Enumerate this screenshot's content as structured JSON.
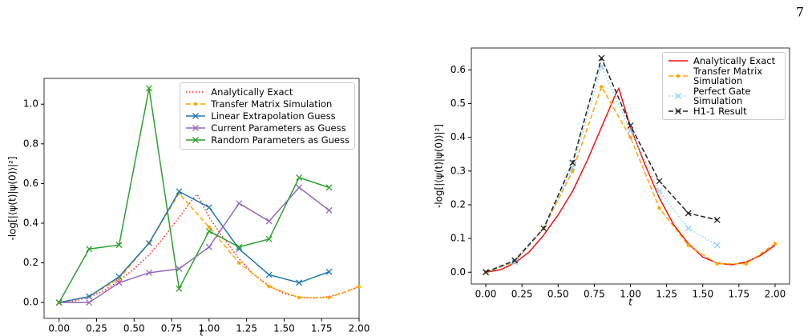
{
  "page_number": "7",
  "chart_data": [
    {
      "type": "line",
      "y_label": "-log[|⟨ψ(t)|ψ(0)⟩|²]",
      "x_label": "t",
      "xlim": [
        -0.1,
        2.0
      ],
      "ylim": [
        -0.08,
        1.13
      ],
      "xticks": [
        {
          "value": 0,
          "label": "0.00"
        },
        0.25,
        {
          "value": 0.5,
          "label": "0.50"
        },
        0.75,
        {
          "value": 1,
          "label": "1.00"
        },
        1.25,
        {
          "value": 1.5,
          "label": "1.50"
        },
        1.75,
        {
          "value": 2,
          "label": "2.00"
        }
      ],
      "yticks": [
        {
          "value": 0,
          "label": "0.0"
        },
        0.2,
        0.4,
        0.6,
        0.8,
        {
          "value": 1,
          "label": "1.0"
        }
      ],
      "legend": "upper right",
      "series": [
        {
          "name": "Analytically Exact",
          "color": "#ff2020",
          "linestyle": "dotted",
          "marker": "none",
          "x": [
            0,
            0.1,
            0.2,
            0.3,
            0.4,
            0.5,
            0.6,
            0.7,
            0.8,
            0.9,
            0.92,
            1.0,
            1.1,
            1.2,
            1.3,
            1.4,
            1.5,
            1.6,
            1.7,
            1.8,
            1.9,
            2.0
          ],
          "values": [
            0,
            0.007,
            0.027,
            0.06,
            0.11,
            0.17,
            0.24,
            0.33,
            0.43,
            0.53,
            0.545,
            0.43,
            0.32,
            0.22,
            0.14,
            0.085,
            0.045,
            0.027,
            0.022,
            0.03,
            0.05,
            0.08
          ]
        },
        {
          "name": "Transfer Matrix Simulation",
          "color": "#ffa500",
          "linestyle": "dashed",
          "marker": "dot",
          "x": [
            0,
            0.2,
            0.4,
            0.6,
            0.8,
            1.0,
            1.2,
            1.4,
            1.6,
            1.8,
            2.0
          ],
          "values": [
            0,
            0.03,
            0.12,
            0.3,
            0.55,
            0.38,
            0.2,
            0.08,
            0.025,
            0.025,
            0.08
          ]
        },
        {
          "name": "Linear Extrapolation Guess",
          "color": "#1f77b4",
          "linestyle": "solid",
          "marker": "x",
          "x": [
            0,
            0.2,
            0.4,
            0.6,
            0.8,
            1.0,
            1.2,
            1.4,
            1.6,
            1.8
          ],
          "values": [
            0,
            0.03,
            0.13,
            0.3,
            0.56,
            0.48,
            0.27,
            0.14,
            0.1,
            0.155
          ]
        },
        {
          "name": "Current Parameters as Guess",
          "color": "#9467bd",
          "linestyle": "solid",
          "marker": "x",
          "x": [
            0,
            0.2,
            0.4,
            0.6,
            0.8,
            1.0,
            1.2,
            1.4,
            1.6,
            1.8
          ],
          "values": [
            0,
            0.0,
            0.1,
            0.15,
            0.17,
            0.28,
            0.5,
            0.41,
            0.58,
            0.465
          ]
        },
        {
          "name": "Random Parameters as Guess",
          "color": "#2ca02c",
          "linestyle": "solid",
          "marker": "x",
          "x": [
            0,
            0.2,
            0.4,
            0.6,
            0.8,
            1.0,
            1.2,
            1.4,
            1.6,
            1.8
          ],
          "values": [
            0,
            0.27,
            0.29,
            1.08,
            0.07,
            0.36,
            0.28,
            0.32,
            0.63,
            0.58
          ]
        }
      ]
    },
    {
      "type": "line",
      "y_label": "-log[|⟨ψ(t)|ψ(0)⟩|²]",
      "x_label": "t",
      "xlim": [
        -0.1,
        2.1
      ],
      "ylim": [
        -0.035,
        0.665
      ],
      "xticks": [
        {
          "value": 0,
          "label": "0.00"
        },
        0.25,
        {
          "value": 0.5,
          "label": "0.50"
        },
        0.75,
        {
          "value": 1,
          "label": "1.00"
        },
        1.25,
        {
          "value": 1.5,
          "label": "1.50"
        },
        1.75,
        {
          "value": 2,
          "label": "2.00"
        }
      ],
      "yticks": [
        {
          "value": 0,
          "label": "0.0"
        },
        0.1,
        0.2,
        0.3,
        0.4,
        0.5,
        0.6
      ],
      "legend": "upper right",
      "series": [
        {
          "name": "Analytically Exact",
          "color": "#ee1111",
          "linestyle": "solid",
          "marker": "none",
          "x": [
            0,
            0.1,
            0.2,
            0.3,
            0.4,
            0.5,
            0.6,
            0.7,
            0.8,
            0.9,
            0.92,
            1.0,
            1.1,
            1.2,
            1.3,
            1.4,
            1.5,
            1.6,
            1.7,
            1.8,
            1.9,
            2.0
          ],
          "values": [
            0,
            0.007,
            0.027,
            0.06,
            0.11,
            0.17,
            0.24,
            0.33,
            0.43,
            0.53,
            0.545,
            0.43,
            0.32,
            0.22,
            0.14,
            0.085,
            0.045,
            0.027,
            0.022,
            0.03,
            0.05,
            0.08
          ]
        },
        {
          "name": "Transfer Matrix Simulation",
          "color": "#ffa500",
          "linestyle": "dashed",
          "marker": "dot",
          "x": [
            0,
            0.2,
            0.4,
            0.6,
            0.8,
            1.0,
            1.2,
            1.4,
            1.6,
            1.8,
            2.0
          ],
          "values": [
            0,
            0.03,
            0.13,
            0.3,
            0.55,
            0.4,
            0.19,
            0.08,
            0.025,
            0.025,
            0.085
          ]
        },
        {
          "name": "Perfect Gate Simulation",
          "color": "#87cefa",
          "linestyle": "dotted",
          "marker": "x",
          "x": [
            0,
            0.2,
            0.4,
            0.6,
            0.8,
            1.0,
            1.2,
            1.4,
            1.6
          ],
          "values": [
            0,
            0.03,
            0.13,
            0.31,
            0.61,
            0.42,
            0.24,
            0.13,
            0.08
          ]
        },
        {
          "name": "H1-1 Result",
          "color": "#222222",
          "linestyle": "dashed",
          "marker": "x",
          "x": [
            0,
            0.2,
            0.4,
            0.6,
            0.8,
            1.0,
            1.2,
            1.4,
            1.6
          ],
          "values": [
            0,
            0.035,
            0.13,
            0.325,
            0.635,
            0.435,
            0.27,
            0.175,
            0.155
          ]
        }
      ]
    }
  ]
}
